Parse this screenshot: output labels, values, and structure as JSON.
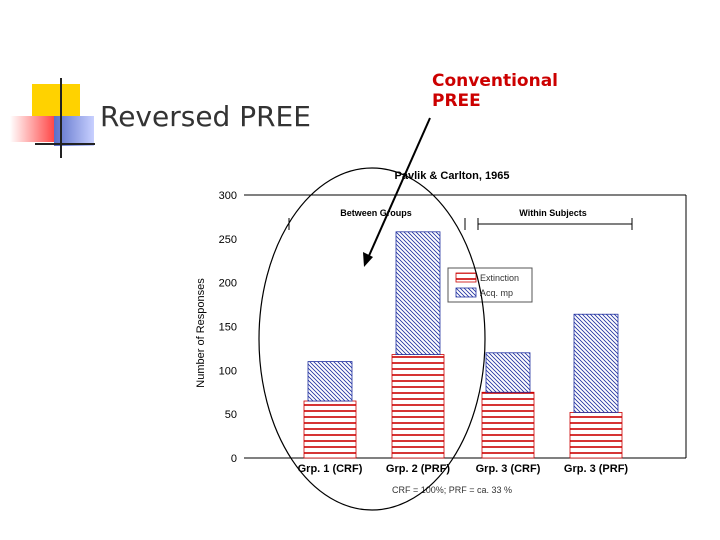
{
  "slide": {
    "title": "Reversed PREE",
    "callout_line1": "Conventional",
    "callout_line2": "PREE"
  },
  "colors": {
    "deco_yellow": "#ffd200",
    "deco_red": "#ff4040",
    "deco_blue": "#5a6fc8",
    "extinction": "#cc0000",
    "acquisition": "#2030a0"
  },
  "chart_data": {
    "type": "bar",
    "stacked": true,
    "title": "Pavlik & Carlton, 1965",
    "ylabel": "Number of Responses",
    "xlabel": "",
    "ylim": [
      0,
      300
    ],
    "yticks": [
      "300",
      "250",
      "200",
      "150",
      "100",
      "50",
      "0"
    ],
    "categories": [
      "Grp. 1 (CRF)",
      "Grp. 2 (PRF)",
      "Grp. 3 (CRF)",
      "Grp. 3 (PRF)"
    ],
    "series": [
      {
        "name": "Extinction",
        "values": [
          65,
          118,
          75,
          52
        ],
        "color": "#cc0000"
      },
      {
        "name": "Acq. mp",
        "values": [
          45,
          140,
          45,
          112
        ],
        "color": "#2030a0"
      }
    ],
    "legend_labels": [
      "Extinction",
      "Acq. mp"
    ],
    "legend_position": "right",
    "group_labels": [
      "Between Groups",
      "Within Subjects"
    ],
    "footnote": "CRF = 100%; PRF = ca. 33 %"
  }
}
